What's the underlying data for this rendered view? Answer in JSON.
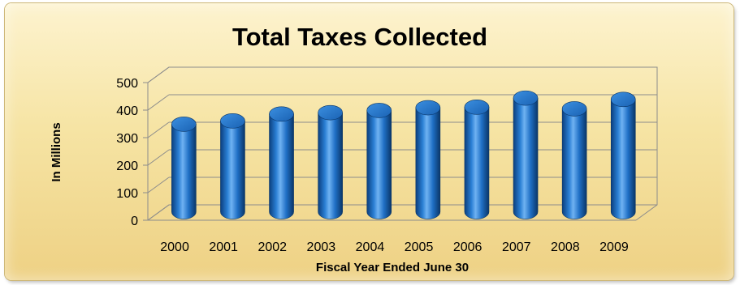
{
  "chart_data": {
    "type": "bar",
    "title": "Total Taxes Collected",
    "xlabel": "Fiscal Year Ended June 30",
    "ylabel": "In Millions",
    "categories": [
      "2000",
      "2001",
      "2002",
      "2003",
      "2004",
      "2005",
      "2006",
      "2007",
      "2008",
      "2009"
    ],
    "series": [
      {
        "values": [
          318,
          330,
          355,
          360,
          368,
          378,
          380,
          413,
          374,
          408
        ]
      }
    ],
    "ylim": [
      0,
      500
    ],
    "yticks": [
      0,
      100,
      200,
      300,
      400,
      500
    ],
    "grid": true,
    "legend": "none",
    "style": "3d-cylinder",
    "colors": {
      "bar": "#1f6fc5",
      "bar_dark": "#0b3f7e",
      "bar_light": "#6fb2f2",
      "background": "#f6e4a4",
      "grid": "#8c8c8c"
    }
  }
}
